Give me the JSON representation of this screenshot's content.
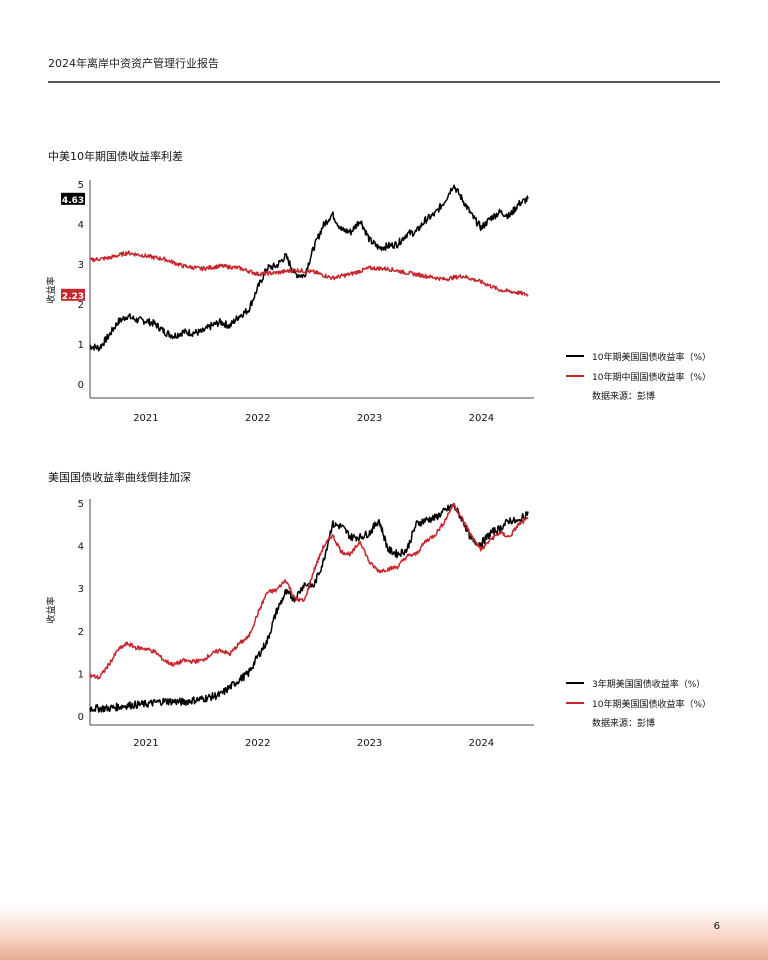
{
  "header": {
    "title": "2024年离岸中资资产管理行业报告"
  },
  "page_number": "6",
  "colors": {
    "black_series": "#000000",
    "red_series": "#c8262d",
    "axis": "#444444"
  },
  "chart_data": [
    {
      "type": "line",
      "title": "中美10年期国债收益率利差",
      "ylabel": "收益率",
      "xlabel": "",
      "ylim": [
        0,
        5
      ],
      "yticks": [
        "0",
        "1",
        "2",
        "3",
        "4",
        "5"
      ],
      "xlim": [
        "2020-07",
        "2024-06"
      ],
      "xticks": [
        {
          "label": "2021",
          "date": "2021-01"
        },
        {
          "label": "2022",
          "date": "2022-01"
        },
        {
          "label": "2023",
          "date": "2023-01"
        },
        {
          "label": "2024",
          "date": "2024-01"
        }
      ],
      "grid": false,
      "legend_position": "right",
      "source": "数据来源：彭博",
      "end_labels": [
        {
          "series": 0,
          "value": "4.63"
        },
        {
          "series": 1,
          "value": "2.23"
        }
      ],
      "series": [
        {
          "name": "10年期美国国债收益率（%）",
          "color": "#000000",
          "points": [
            [
              "2020-07",
              0.95
            ],
            [
              "2020-08",
              0.9
            ],
            [
              "2020-09",
              1.2
            ],
            [
              "2020-10",
              1.55
            ],
            [
              "2020-11",
              1.7
            ],
            [
              "2020-12",
              1.6
            ],
            [
              "2021-01",
              1.58
            ],
            [
              "2021-02",
              1.5
            ],
            [
              "2021-03",
              1.3
            ],
            [
              "2021-04",
              1.2
            ],
            [
              "2021-05",
              1.3
            ],
            [
              "2021-06",
              1.28
            ],
            [
              "2021-07",
              1.3
            ],
            [
              "2021-08",
              1.45
            ],
            [
              "2021-09",
              1.55
            ],
            [
              "2021-10",
              1.45
            ],
            [
              "2021-11",
              1.7
            ],
            [
              "2021-12",
              1.85
            ],
            [
              "2022-01",
              2.4
            ],
            [
              "2022-02",
              2.9
            ],
            [
              "2022-03",
              2.95
            ],
            [
              "2022-04",
              3.2
            ],
            [
              "2022-05",
              2.75
            ],
            [
              "2022-06",
              2.7
            ],
            [
              "2022-07",
              3.4
            ],
            [
              "2022-08",
              3.95
            ],
            [
              "2022-09",
              4.25
            ],
            [
              "2022-10",
              3.85
            ],
            [
              "2022-11",
              3.8
            ],
            [
              "2022-12",
              4.1
            ],
            [
              "2023-01",
              3.6
            ],
            [
              "2023-02",
              3.4
            ],
            [
              "2023-03",
              3.45
            ],
            [
              "2023-04",
              3.5
            ],
            [
              "2023-05",
              3.75
            ],
            [
              "2023-06",
              3.8
            ],
            [
              "2023-07",
              4.1
            ],
            [
              "2023-08",
              4.25
            ],
            [
              "2023-09",
              4.55
            ],
            [
              "2023-10",
              4.98
            ],
            [
              "2023-11",
              4.6
            ],
            [
              "2023-12",
              4.2
            ],
            [
              "2024-01",
              3.9
            ],
            [
              "2024-02",
              4.15
            ],
            [
              "2024-03",
              4.3
            ],
            [
              "2024-04",
              4.2
            ],
            [
              "2024-05",
              4.5
            ],
            [
              "2024-06",
              4.63
            ]
          ]
        },
        {
          "name": "10年期中国国债收益率（%）",
          "color": "#c8262d",
          "points": [
            [
              "2020-07",
              3.1
            ],
            [
              "2020-09",
              3.15
            ],
            [
              "2020-11",
              3.28
            ],
            [
              "2021-01",
              3.2
            ],
            [
              "2021-03",
              3.12
            ],
            [
              "2021-05",
              2.95
            ],
            [
              "2021-07",
              2.88
            ],
            [
              "2021-09",
              2.95
            ],
            [
              "2021-11",
              2.9
            ],
            [
              "2022-01",
              2.75
            ],
            [
              "2022-03",
              2.78
            ],
            [
              "2022-05",
              2.85
            ],
            [
              "2022-07",
              2.8
            ],
            [
              "2022-09",
              2.65
            ],
            [
              "2022-11",
              2.75
            ],
            [
              "2023-01",
              2.9
            ],
            [
              "2023-03",
              2.88
            ],
            [
              "2023-05",
              2.78
            ],
            [
              "2023-07",
              2.7
            ],
            [
              "2023-09",
              2.62
            ],
            [
              "2023-11",
              2.7
            ],
            [
              "2024-01",
              2.55
            ],
            [
              "2024-03",
              2.35
            ],
            [
              "2024-05",
              2.28
            ],
            [
              "2024-06",
              2.23
            ]
          ]
        }
      ]
    },
    {
      "type": "line",
      "title": "美国国债收益率曲线倒挂加深",
      "ylabel": "收益率",
      "xlabel": "",
      "ylim": [
        0,
        5
      ],
      "yticks": [
        "0",
        "1",
        "2",
        "3",
        "4",
        "5"
      ],
      "xlim": [
        "2020-07",
        "2024-06"
      ],
      "xticks": [
        {
          "label": "2021",
          "date": "2021-01"
        },
        {
          "label": "2022",
          "date": "2022-01"
        },
        {
          "label": "2023",
          "date": "2023-01"
        },
        {
          "label": "2024",
          "date": "2024-01"
        }
      ],
      "grid": false,
      "legend_position": "right",
      "source": "数据来源：彭博",
      "series": [
        {
          "name": "3年期美国国债收益率（%）",
          "color": "#000000",
          "points": [
            [
              "2020-07",
              0.18
            ],
            [
              "2020-09",
              0.18
            ],
            [
              "2020-11",
              0.25
            ],
            [
              "2021-01",
              0.28
            ],
            [
              "2021-03",
              0.35
            ],
            [
              "2021-05",
              0.33
            ],
            [
              "2021-07",
              0.4
            ],
            [
              "2021-09",
              0.5
            ],
            [
              "2021-11",
              0.85
            ],
            [
              "2021-12",
              1.0
            ],
            [
              "2022-01",
              1.4
            ],
            [
              "2022-02",
              1.75
            ],
            [
              "2022-03",
              2.45
            ],
            [
              "2022-04",
              2.9
            ],
            [
              "2022-05",
              2.75
            ],
            [
              "2022-06",
              3.1
            ],
            [
              "2022-07",
              3.05
            ],
            [
              "2022-08",
              3.6
            ],
            [
              "2022-09",
              4.5
            ],
            [
              "2022-10",
              4.45
            ],
            [
              "2022-11",
              4.2
            ],
            [
              "2022-12",
              4.2
            ],
            [
              "2023-01",
              4.3
            ],
            [
              "2023-02",
              4.6
            ],
            [
              "2023-03",
              3.9
            ],
            [
              "2023-04",
              3.8
            ],
            [
              "2023-05",
              3.9
            ],
            [
              "2023-06",
              4.5
            ],
            [
              "2023-07",
              4.6
            ],
            [
              "2023-08",
              4.65
            ],
            [
              "2023-09",
              4.8
            ],
            [
              "2023-10",
              4.95
            ],
            [
              "2023-11",
              4.6
            ],
            [
              "2023-12",
              4.1
            ],
            [
              "2024-01",
              4.05
            ],
            [
              "2024-02",
              4.3
            ],
            [
              "2024-03",
              4.4
            ],
            [
              "2024-04",
              4.6
            ],
            [
              "2024-05",
              4.55
            ],
            [
              "2024-06",
              4.8
            ]
          ]
        },
        {
          "name": "10年期美国国债收益率（%）",
          "color": "#c8262d",
          "points": [
            [
              "2020-07",
              0.95
            ],
            [
              "2020-08",
              0.9
            ],
            [
              "2020-09",
              1.2
            ],
            [
              "2020-10",
              1.55
            ],
            [
              "2020-11",
              1.7
            ],
            [
              "2020-12",
              1.6
            ],
            [
              "2021-01",
              1.58
            ],
            [
              "2021-02",
              1.5
            ],
            [
              "2021-03",
              1.3
            ],
            [
              "2021-04",
              1.2
            ],
            [
              "2021-05",
              1.3
            ],
            [
              "2021-06",
              1.28
            ],
            [
              "2021-07",
              1.3
            ],
            [
              "2021-08",
              1.45
            ],
            [
              "2021-09",
              1.55
            ],
            [
              "2021-10",
              1.45
            ],
            [
              "2021-11",
              1.7
            ],
            [
              "2021-12",
              1.85
            ],
            [
              "2022-01",
              2.4
            ],
            [
              "2022-02",
              2.9
            ],
            [
              "2022-03",
              2.95
            ],
            [
              "2022-04",
              3.2
            ],
            [
              "2022-05",
              2.75
            ],
            [
              "2022-06",
              2.7
            ],
            [
              "2022-07",
              3.4
            ],
            [
              "2022-08",
              3.95
            ],
            [
              "2022-09",
              4.25
            ],
            [
              "2022-10",
              3.85
            ],
            [
              "2022-11",
              3.8
            ],
            [
              "2022-12",
              4.1
            ],
            [
              "2023-01",
              3.6
            ],
            [
              "2023-02",
              3.4
            ],
            [
              "2023-03",
              3.45
            ],
            [
              "2023-04",
              3.5
            ],
            [
              "2023-05",
              3.75
            ],
            [
              "2023-06",
              3.8
            ],
            [
              "2023-07",
              4.1
            ],
            [
              "2023-08",
              4.25
            ],
            [
              "2023-09",
              4.55
            ],
            [
              "2023-10",
              4.98
            ],
            [
              "2023-11",
              4.6
            ],
            [
              "2023-12",
              4.2
            ],
            [
              "2024-01",
              3.9
            ],
            [
              "2024-02",
              4.15
            ],
            [
              "2024-03",
              4.3
            ],
            [
              "2024-04",
              4.2
            ],
            [
              "2024-05",
              4.5
            ],
            [
              "2024-06",
              4.63
            ]
          ]
        }
      ]
    }
  ]
}
